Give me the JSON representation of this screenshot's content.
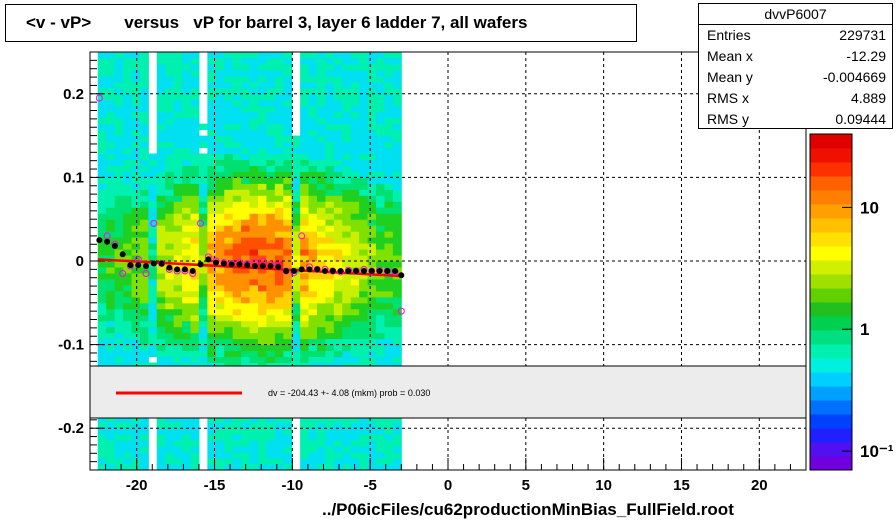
{
  "title": "<v - vP>       versus   vP for barrel 3, layer 6 ladder 7, all wafers",
  "stats": {
    "name": "dvvP6007",
    "rows": [
      {
        "label": "Entries",
        "value": "229731"
      },
      {
        "label": "Mean x",
        "value": "-12.29"
      },
      {
        "label": "Mean y",
        "value": "-0.004669"
      },
      {
        "label": "RMS x",
        "value": "4.889"
      },
      {
        "label": "RMS y",
        "value": "0.09444"
      }
    ]
  },
  "fit_legend": "dv = -204.43 +-  4.08 (mkm) prob = 0.030",
  "footer": "../P06icFiles/cu62productionMinBias_FullField.root",
  "colors": {
    "profile_points": "#000000",
    "overlay_points": "#ff00ff",
    "fit_line": "#ff0000",
    "legend_bg": "#ececec"
  },
  "chart_data": {
    "type": "heatmap",
    "xlim": [
      -23,
      23
    ],
    "ylim": [
      -0.25,
      0.25
    ],
    "x_ticks": [
      -20,
      -15,
      -10,
      -5,
      0,
      5,
      10,
      15,
      20
    ],
    "y_ticks": [
      -0.2,
      -0.1,
      0,
      0.1,
      0.2
    ],
    "y_tick_labels": [
      "-0.2",
      "-0.1",
      "0",
      "0.1",
      "0.2"
    ],
    "grid": true,
    "occupied_x_range": [
      -22.5,
      -3
    ],
    "colorbar_labels": [
      {
        "value": 10,
        "label": "10"
      },
      {
        "value": 1,
        "label": "1"
      },
      {
        "value": 0.1,
        "label": "10⁻¹"
      }
    ],
    "colorbar_log": true,
    "colorbar_range": [
      0.07,
      40
    ],
    "profile": {
      "x": [
        -22.4,
        -21.9,
        -21.4,
        -20.9,
        -20.4,
        -19.9,
        -19.4,
        -18.9,
        -18.4,
        -17.9,
        -17.4,
        -16.9,
        -16.4,
        -15.9,
        -15.4,
        -14.9,
        -14.4,
        -13.9,
        -13.4,
        -12.9,
        -12.4,
        -11.9,
        -11.4,
        -10.9,
        -10.4,
        -9.9,
        -9.4,
        -8.9,
        -8.4,
        -7.9,
        -7.4,
        -6.9,
        -6.4,
        -5.9,
        -5.4,
        -4.9,
        -4.4,
        -3.9,
        -3.4,
        -3.0
      ],
      "y": [
        0.025,
        0.023,
        0.018,
        0.008,
        -0.005,
        -0.005,
        -0.006,
        -0.003,
        -0.003,
        -0.008,
        -0.01,
        -0.01,
        -0.012,
        -0.004,
        0.002,
        -0.002,
        -0.003,
        -0.004,
        -0.004,
        -0.005,
        -0.006,
        -0.006,
        -0.006,
        -0.007,
        -0.012,
        -0.012,
        -0.01,
        -0.01,
        -0.01,
        -0.012,
        -0.012,
        -0.012,
        -0.012,
        -0.012,
        -0.012,
        -0.012,
        -0.012,
        -0.012,
        -0.012,
        -0.017
      ]
    },
    "overlay": {
      "x": [
        -22.4,
        -21.9,
        -21.4,
        -20.9,
        -20.4,
        -19.9,
        -19.4,
        -18.9,
        -18.4,
        -17.9,
        -17.4,
        -16.9,
        -16.4,
        -15.9,
        -15.4,
        -14.9,
        -14.4,
        -13.9,
        -13.4,
        -12.9,
        -12.4,
        -11.9,
        -11.4,
        -10.9,
        -10.4,
        -9.9,
        -9.4,
        -8.9,
        -8.4,
        -7.9,
        -7.4,
        -6.9,
        -6.4,
        -5.9,
        -5.4,
        -4.9,
        -4.4,
        -3.9,
        -3.4,
        -3.0
      ],
      "y": [
        0.195,
        0.03,
        0.02,
        -0.015,
        -0.006,
        0.002,
        -0.015,
        0.045,
        -0.003,
        -0.01,
        -0.012,
        -0.012,
        -0.015,
        0.045,
        0.005,
        0.0,
        -0.002,
        -0.003,
        -0.002,
        -0.003,
        -0.002,
        0.0,
        -0.004,
        -0.005,
        -0.012,
        -0.014,
        0.03,
        -0.007,
        -0.01,
        -0.01,
        -0.012,
        -0.013,
        -0.011,
        -0.012,
        -0.01,
        -0.012,
        -0.011,
        -0.012,
        -0.013,
        -0.06
      ]
    },
    "fit_line": {
      "x": [
        -22.5,
        -3.0
      ],
      "y": [
        0.002,
        -0.018
      ]
    }
  }
}
